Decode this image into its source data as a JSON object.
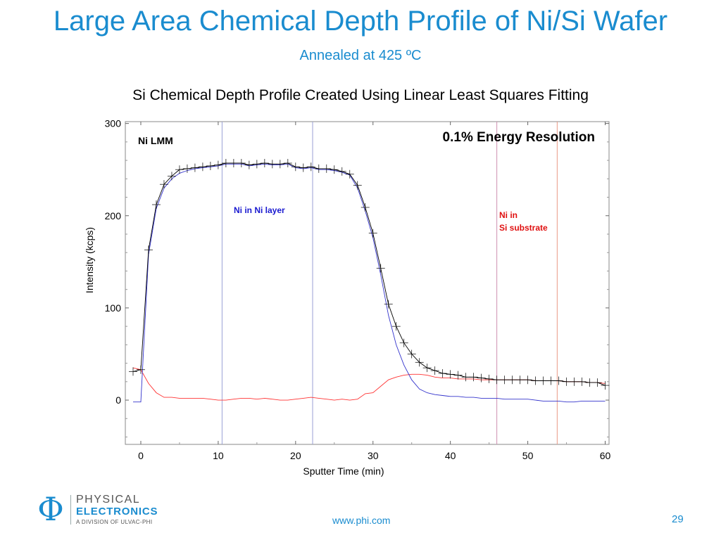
{
  "slide": {
    "title": "Large Area Chemical Depth Profile of Ni/Si Wafer",
    "subtitle": "Annealed at 425 ºC",
    "chart_heading": "Si Chemical Depth Profile Created Using Linear Least Squares Fitting",
    "url": "www.phi.com",
    "page_number": "29",
    "logo": {
      "line1": "PHYSICAL",
      "line2": "ELECTRONICS",
      "line3": "A DIVISION OF ULVAC-PHI"
    }
  },
  "chart_data": {
    "type": "line",
    "xlabel": "Sputter Time (min)",
    "ylabel": "Intensity (kcps)",
    "xlim": [
      -2,
      60.5
    ],
    "ylim": [
      -48,
      302
    ],
    "xticks": [
      0,
      10,
      20,
      30,
      40,
      50,
      60
    ],
    "yticks": [
      0,
      100,
      200,
      300
    ],
    "grid": false,
    "annotations": {
      "signal": "Ni LMM",
      "resolution": "0.1% Energy Resolution",
      "region_layer": "Ni in Ni layer",
      "region_substrate_line1": "Ni in",
      "region_substrate_line2": "Si substrate"
    },
    "vertical_markers": [
      {
        "x": 10.5,
        "color": "#9aa0d6"
      },
      {
        "x": 22.2,
        "color": "#9aa0d6"
      },
      {
        "x": 46.0,
        "color": "#cf8fb0"
      },
      {
        "x": 53.8,
        "color": "#e89a86"
      }
    ],
    "series": [
      {
        "color": "#000000",
        "markers": true,
        "x": [
          -1,
          0,
          1,
          2,
          3,
          4,
          5,
          6,
          7,
          8,
          9,
          10,
          11,
          12,
          13,
          14,
          15,
          16,
          17,
          18,
          19,
          20,
          21,
          22,
          23,
          24,
          25,
          26,
          27,
          28,
          29,
          30,
          31,
          32,
          33,
          34,
          35,
          36,
          37,
          38,
          39,
          40,
          41,
          42,
          43,
          44,
          45,
          46,
          47,
          48,
          49,
          50,
          51,
          52,
          53,
          54,
          55,
          56,
          57,
          58,
          59,
          60
        ],
        "y": [
          31,
          33,
          163,
          212,
          234,
          243,
          250,
          251,
          252,
          253,
          254,
          255,
          257,
          257,
          257,
          255,
          256,
          257,
          256,
          256,
          257,
          253,
          252,
          253,
          251,
          251,
          250,
          248,
          245,
          233,
          209,
          181,
          143,
          104,
          80,
          62,
          50,
          41,
          35,
          32,
          29,
          28,
          27,
          25,
          25,
          24,
          23,
          22,
          22,
          22,
          22,
          22,
          21,
          21,
          21,
          21,
          20,
          20,
          20,
          19,
          19,
          16
        ]
      },
      {
        "color": "#3333cc",
        "markers": false,
        "x": [
          -1,
          0,
          1,
          2,
          3,
          4,
          5,
          6,
          7,
          8,
          9,
          10,
          11,
          12,
          13,
          14,
          15,
          16,
          17,
          18,
          19,
          20,
          21,
          22,
          23,
          24,
          25,
          26,
          27,
          28,
          29,
          30,
          31,
          32,
          33,
          34,
          35,
          36,
          37,
          38,
          39,
          40,
          41,
          42,
          43,
          44,
          45,
          46,
          47,
          48,
          49,
          50,
          51,
          52,
          53,
          54,
          55,
          56,
          57,
          58,
          59,
          60
        ],
        "y": [
          -2,
          -2,
          158,
          208,
          230,
          240,
          246,
          249,
          251,
          252,
          253,
          254,
          256,
          256,
          256,
          254,
          255,
          256,
          255,
          255,
          256,
          252,
          251,
          252,
          250,
          250,
          249,
          247,
          244,
          230,
          205,
          176,
          136,
          92,
          60,
          38,
          22,
          12,
          8,
          6,
          5,
          4,
          4,
          3,
          3,
          2,
          2,
          2,
          1,
          1,
          1,
          1,
          0,
          -1,
          -1,
          -1,
          -2,
          -2,
          -1,
          -1,
          -1,
          -1
        ]
      },
      {
        "color": "#ff3333",
        "markers": false,
        "x": [
          -1,
          0,
          1,
          2,
          3,
          4,
          5,
          6,
          7,
          8,
          9,
          10,
          11,
          12,
          13,
          14,
          15,
          16,
          17,
          18,
          19,
          20,
          21,
          22,
          23,
          24,
          25,
          26,
          27,
          28,
          29,
          30,
          31,
          32,
          33,
          34,
          35,
          36,
          37,
          38,
          39,
          40,
          41,
          42,
          43,
          44,
          45,
          46,
          47,
          48,
          49,
          50,
          51,
          52,
          53,
          54,
          55,
          56,
          57,
          58,
          59,
          60
        ],
        "y": [
          35,
          33,
          18,
          8,
          3,
          3,
          2,
          2,
          2,
          2,
          1,
          0,
          0,
          1,
          2,
          2,
          1,
          2,
          1,
          0,
          0,
          1,
          2,
          3,
          2,
          1,
          0,
          1,
          0,
          1,
          7,
          8,
          15,
          22,
          25,
          27,
          28,
          28,
          27,
          25,
          24,
          24,
          23,
          23,
          23,
          22,
          22,
          22,
          22,
          22,
          22,
          22,
          21,
          21,
          21,
          21,
          20,
          20,
          20,
          19,
          19,
          18
        ]
      }
    ]
  }
}
